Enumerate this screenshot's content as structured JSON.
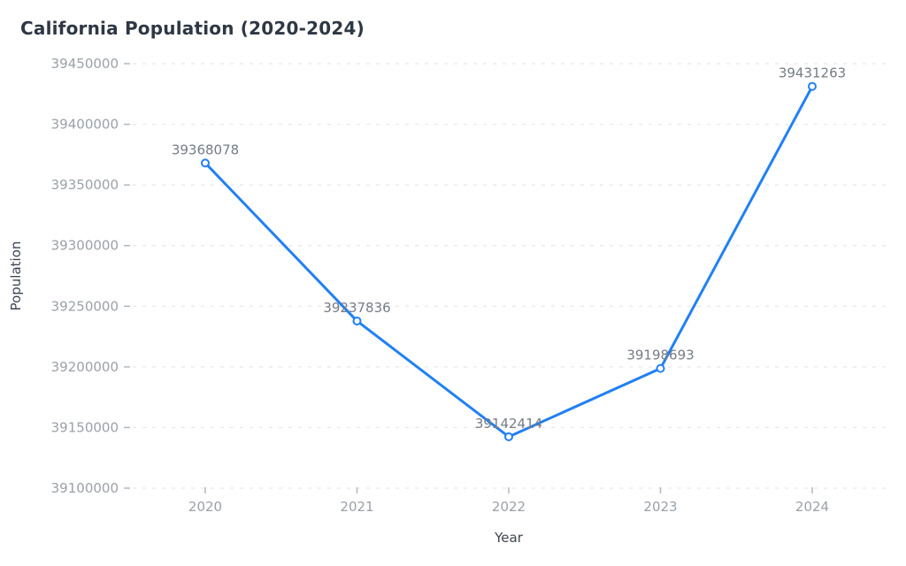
{
  "chart_data": {
    "type": "line",
    "title": "California Population (2020-2024)",
    "xlabel": "Year",
    "ylabel": "Population",
    "categories": [
      "2020",
      "2021",
      "2022",
      "2023",
      "2024"
    ],
    "series": [
      {
        "name": "Population",
        "values": [
          39368078,
          39237836,
          39142414,
          39198693,
          39431263
        ]
      }
    ],
    "data_labels": [
      "39368078",
      "39237836",
      "39142414",
      "39198693",
      "39431263"
    ],
    "ylim": [
      39100000,
      39450000
    ],
    "yticks": [
      39100000,
      39150000,
      39200000,
      39250000,
      39300000,
      39350000,
      39400000,
      39450000
    ],
    "grid": "horizontal-dashed",
    "legend": "none",
    "marker": "open-circle",
    "styles": {
      "line_color": "#2180f3",
      "marker_fill": "#ffffff",
      "grid_color": "#e7e7e7",
      "tick_mark_color": "#b3b8bd",
      "tick_label_color": "#9ba1a8",
      "data_label_color": "#767c85",
      "axis_title_color": "#3e4553",
      "title_color": "#2e3844",
      "background": "#ffffff"
    }
  }
}
